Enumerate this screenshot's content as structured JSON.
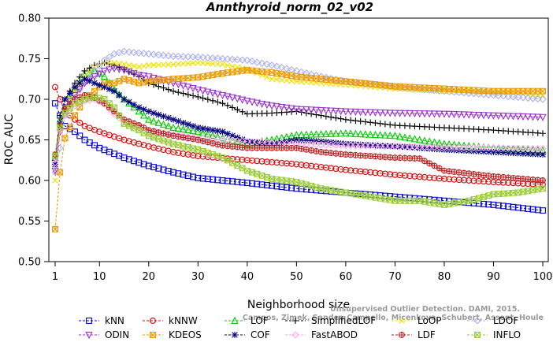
{
  "chart_data": {
    "type": "line",
    "title": "Annthyroid_norm_02_v02",
    "xlabel": "Neighborhood size",
    "ylabel": "ROC AUC",
    "xlim": [
      1,
      100
    ],
    "ylim": [
      0.5,
      0.8
    ],
    "xticks": [
      "1",
      "10",
      "20",
      "30",
      "40",
      "50",
      "60",
      "70",
      "80",
      "90",
      "100"
    ],
    "yticks": [
      "0.50",
      "0.55",
      "0.60",
      "0.65",
      "0.70",
      "0.75",
      "0.80"
    ],
    "grid": false,
    "legend_position": "bottom",
    "watermark": [
      "Unsupervised Outlier Detection. DAMI, 2015.",
      "Campos, Zimek, Sander, Campello, Micenkova, Schubert, Assent, Houle"
    ],
    "series": [
      {
        "name": "kNN",
        "color": "#0000cc",
        "marker": "square",
        "points": [
          [
            1,
            0.695
          ],
          [
            2,
            0.68
          ],
          [
            3,
            0.667
          ],
          [
            5,
            0.66
          ],
          [
            7,
            0.65
          ],
          [
            10,
            0.64
          ],
          [
            15,
            0.628
          ],
          [
            20,
            0.618
          ],
          [
            25,
            0.61
          ],
          [
            30,
            0.603
          ],
          [
            40,
            0.597
          ],
          [
            50,
            0.59
          ],
          [
            60,
            0.585
          ],
          [
            70,
            0.58
          ],
          [
            80,
            0.575
          ],
          [
            90,
            0.57
          ],
          [
            100,
            0.563
          ]
        ]
      },
      {
        "name": "kNNW",
        "color": "#dd0000",
        "marker": "circle",
        "points": [
          [
            1,
            0.715
          ],
          [
            2,
            0.7
          ],
          [
            3,
            0.685
          ],
          [
            5,
            0.675
          ],
          [
            7,
            0.667
          ],
          [
            10,
            0.66
          ],
          [
            15,
            0.65
          ],
          [
            20,
            0.642
          ],
          [
            25,
            0.635
          ],
          [
            30,
            0.63
          ],
          [
            40,
            0.625
          ],
          [
            50,
            0.62
          ],
          [
            60,
            0.613
          ],
          [
            70,
            0.607
          ],
          [
            80,
            0.602
          ],
          [
            90,
            0.598
          ],
          [
            100,
            0.595
          ]
        ]
      },
      {
        "name": "LOF",
        "color": "#00cc00",
        "marker": "triangle",
        "points": [
          [
            1,
            0.628
          ],
          [
            2,
            0.675
          ],
          [
            3,
            0.69
          ],
          [
            5,
            0.712
          ],
          [
            7,
            0.73
          ],
          [
            9,
            0.735
          ],
          [
            11,
            0.728
          ],
          [
            13,
            0.712
          ],
          [
            15,
            0.7
          ],
          [
            18,
            0.685
          ],
          [
            20,
            0.675
          ],
          [
            25,
            0.665
          ],
          [
            30,
            0.66
          ],
          [
            35,
            0.652
          ],
          [
            40,
            0.645
          ],
          [
            45,
            0.65
          ],
          [
            50,
            0.656
          ],
          [
            55,
            0.657
          ],
          [
            60,
            0.658
          ],
          [
            70,
            0.655
          ],
          [
            80,
            0.645
          ],
          [
            90,
            0.64
          ],
          [
            100,
            0.637
          ]
        ]
      },
      {
        "name": "SimplifiedLOF",
        "color": "#000000",
        "marker": "plus",
        "points": [
          [
            1,
            0.625
          ],
          [
            2,
            0.68
          ],
          [
            3,
            0.7
          ],
          [
            5,
            0.72
          ],
          [
            7,
            0.735
          ],
          [
            9,
            0.742
          ],
          [
            11,
            0.745
          ],
          [
            13,
            0.742
          ],
          [
            15,
            0.737
          ],
          [
            18,
            0.728
          ],
          [
            20,
            0.72
          ],
          [
            25,
            0.71
          ],
          [
            30,
            0.703
          ],
          [
            35,
            0.695
          ],
          [
            40,
            0.682
          ],
          [
            45,
            0.683
          ],
          [
            50,
            0.685
          ],
          [
            55,
            0.68
          ],
          [
            60,
            0.675
          ],
          [
            70,
            0.668
          ],
          [
            80,
            0.665
          ],
          [
            90,
            0.662
          ],
          [
            100,
            0.658
          ]
        ]
      },
      {
        "name": "LoOP",
        "color": "#f0e000",
        "marker": "x",
        "points": [
          [
            1,
            0.6
          ],
          [
            2,
            0.66
          ],
          [
            3,
            0.69
          ],
          [
            5,
            0.71
          ],
          [
            7,
            0.728
          ],
          [
            9,
            0.74
          ],
          [
            11,
            0.745
          ],
          [
            13,
            0.745
          ],
          [
            15,
            0.743
          ],
          [
            18,
            0.74
          ],
          [
            20,
            0.742
          ],
          [
            25,
            0.743
          ],
          [
            30,
            0.745
          ],
          [
            35,
            0.743
          ],
          [
            40,
            0.737
          ],
          [
            45,
            0.725
          ],
          [
            50,
            0.722
          ],
          [
            60,
            0.718
          ],
          [
            70,
            0.713
          ],
          [
            80,
            0.71
          ],
          [
            90,
            0.708
          ],
          [
            100,
            0.705
          ]
        ]
      },
      {
        "name": "LDOF",
        "color": "#aab0ee",
        "marker": "diamond",
        "points": [
          [
            1,
            0.61
          ],
          [
            2,
            0.64
          ],
          [
            3,
            0.68
          ],
          [
            5,
            0.705
          ],
          [
            7,
            0.72
          ],
          [
            9,
            0.735
          ],
          [
            11,
            0.748
          ],
          [
            13,
            0.756
          ],
          [
            15,
            0.759
          ],
          [
            18,
            0.757
          ],
          [
            20,
            0.756
          ],
          [
            25,
            0.753
          ],
          [
            30,
            0.752
          ],
          [
            35,
            0.75
          ],
          [
            40,
            0.748
          ],
          [
            45,
            0.742
          ],
          [
            50,
            0.735
          ],
          [
            55,
            0.728
          ],
          [
            60,
            0.722
          ],
          [
            70,
            0.715
          ],
          [
            80,
            0.71
          ],
          [
            90,
            0.705
          ],
          [
            100,
            0.7
          ]
        ]
      },
      {
        "name": "ODIN",
        "color": "#9933cc",
        "marker": "triangle-down",
        "points": [
          [
            1,
            0.612
          ],
          [
            2,
            0.66
          ],
          [
            3,
            0.69
          ],
          [
            5,
            0.705
          ],
          [
            7,
            0.72
          ],
          [
            9,
            0.728
          ],
          [
            11,
            0.735
          ],
          [
            13,
            0.738
          ],
          [
            15,
            0.736
          ],
          [
            18,
            0.73
          ],
          [
            20,
            0.728
          ],
          [
            25,
            0.72
          ],
          [
            30,
            0.712
          ],
          [
            35,
            0.705
          ],
          [
            40,
            0.698
          ],
          [
            45,
            0.692
          ],
          [
            50,
            0.688
          ],
          [
            60,
            0.685
          ],
          [
            70,
            0.683
          ],
          [
            80,
            0.682
          ],
          [
            90,
            0.68
          ],
          [
            100,
            0.678
          ]
        ]
      },
      {
        "name": "KDEOS",
        "color": "#ee9900",
        "marker": "square-x",
        "points": [
          [
            1,
            0.54
          ],
          [
            2,
            0.61
          ],
          [
            3,
            0.652
          ],
          [
            5,
            0.68
          ],
          [
            7,
            0.7
          ],
          [
            9,
            0.71
          ],
          [
            11,
            0.72
          ],
          [
            13,
            0.72
          ],
          [
            15,
            0.725
          ],
          [
            18,
            0.72
          ],
          [
            20,
            0.722
          ],
          [
            25,
            0.725
          ],
          [
            30,
            0.727
          ],
          [
            35,
            0.732
          ],
          [
            40,
            0.736
          ],
          [
            45,
            0.733
          ],
          [
            50,
            0.728
          ],
          [
            55,
            0.725
          ],
          [
            60,
            0.722
          ],
          [
            70,
            0.716
          ],
          [
            80,
            0.713
          ],
          [
            90,
            0.71
          ],
          [
            100,
            0.71
          ]
        ]
      },
      {
        "name": "COF",
        "color": "#000080",
        "marker": "asterisk",
        "points": [
          [
            1,
            0.62
          ],
          [
            2,
            0.67
          ],
          [
            3,
            0.7
          ],
          [
            5,
            0.715
          ],
          [
            7,
            0.725
          ],
          [
            9,
            0.72
          ],
          [
            11,
            0.715
          ],
          [
            13,
            0.71
          ],
          [
            15,
            0.7
          ],
          [
            18,
            0.69
          ],
          [
            20,
            0.685
          ],
          [
            25,
            0.675
          ],
          [
            30,
            0.665
          ],
          [
            35,
            0.66
          ],
          [
            40,
            0.648
          ],
          [
            45,
            0.645
          ],
          [
            50,
            0.65
          ],
          [
            55,
            0.648
          ],
          [
            60,
            0.645
          ],
          [
            70,
            0.642
          ],
          [
            80,
            0.638
          ],
          [
            90,
            0.635
          ],
          [
            100,
            0.632
          ]
        ]
      },
      {
        "name": "FastABOD",
        "color": "#ffaaee",
        "marker": "diamond",
        "points": [
          [
            1,
            0.622
          ],
          [
            2,
            0.662
          ],
          [
            3,
            0.682
          ],
          [
            5,
            0.692
          ],
          [
            7,
            0.698
          ],
          [
            9,
            0.7
          ],
          [
            11,
            0.694
          ],
          [
            13,
            0.682
          ],
          [
            15,
            0.672
          ],
          [
            18,
            0.665
          ],
          [
            20,
            0.66
          ],
          [
            25,
            0.657
          ],
          [
            30,
            0.652
          ],
          [
            40,
            0.648
          ],
          [
            50,
            0.645
          ],
          [
            60,
            0.643
          ],
          [
            70,
            0.642
          ],
          [
            80,
            0.641
          ],
          [
            90,
            0.64
          ],
          [
            100,
            0.639
          ]
        ]
      },
      {
        "name": "LDF",
        "color": "#bb2222",
        "marker": "circle-plus",
        "points": [
          [
            1,
            0.632
          ],
          [
            2,
            0.668
          ],
          [
            3,
            0.688
          ],
          [
            5,
            0.7
          ],
          [
            7,
            0.705
          ],
          [
            9,
            0.702
          ],
          [
            11,
            0.695
          ],
          [
            13,
            0.685
          ],
          [
            15,
            0.675
          ],
          [
            18,
            0.668
          ],
          [
            20,
            0.662
          ],
          [
            25,
            0.655
          ],
          [
            30,
            0.65
          ],
          [
            35,
            0.643
          ],
          [
            40,
            0.64
          ],
          [
            45,
            0.64
          ],
          [
            50,
            0.64
          ],
          [
            55,
            0.635
          ],
          [
            60,
            0.632
          ],
          [
            70,
            0.628
          ],
          [
            75,
            0.627
          ],
          [
            80,
            0.612
          ],
          [
            90,
            0.605
          ],
          [
            100,
            0.6
          ]
        ]
      },
      {
        "name": "INFLO",
        "color": "#99cc33",
        "marker": "square-x",
        "points": [
          [
            1,
            0.63
          ],
          [
            2,
            0.665
          ],
          [
            3,
            0.683
          ],
          [
            5,
            0.695
          ],
          [
            7,
            0.7
          ],
          [
            9,
            0.703
          ],
          [
            11,
            0.7
          ],
          [
            13,
            0.69
          ],
          [
            15,
            0.67
          ],
          [
            18,
            0.662
          ],
          [
            20,
            0.655
          ],
          [
            25,
            0.645
          ],
          [
            30,
            0.638
          ],
          [
            35,
            0.628
          ],
          [
            40,
            0.612
          ],
          [
            45,
            0.602
          ],
          [
            50,
            0.598
          ],
          [
            55,
            0.59
          ],
          [
            60,
            0.585
          ],
          [
            65,
            0.58
          ],
          [
            70,
            0.575
          ],
          [
            75,
            0.575
          ],
          [
            80,
            0.57
          ],
          [
            85,
            0.575
          ],
          [
            90,
            0.583
          ],
          [
            95,
            0.585
          ],
          [
            100,
            0.59
          ]
        ]
      }
    ]
  }
}
